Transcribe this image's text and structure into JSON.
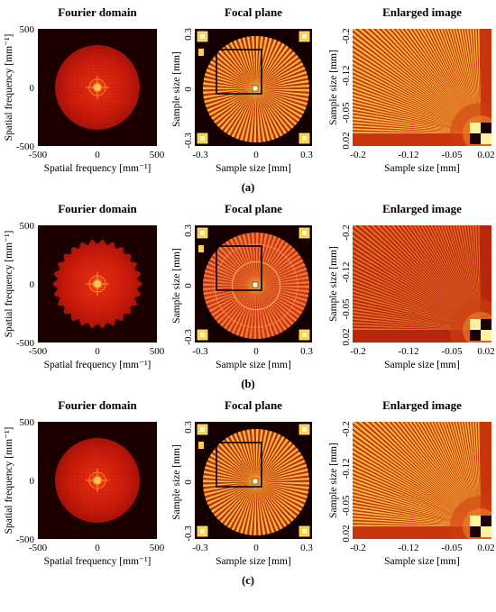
{
  "figure": {
    "rows": [
      {
        "caption": "(a)",
        "variant": "a",
        "panels": {
          "fourier": {
            "title": "Fourier domain",
            "xlabel": "Spatial frequency [mm⁻¹]",
            "ylabel": "Spatial frequency [mm⁻¹]"
          },
          "focal": {
            "title": "Focal plane",
            "xlabel": "Sample size [mm]",
            "ylabel": "Sample size [mm]"
          },
          "enlarged": {
            "title": "Enlarged image",
            "xlabel": "Sample size [mm]",
            "ylabel": "Sample size [mm]"
          }
        }
      },
      {
        "caption": "(b)",
        "variant": "b",
        "panels": {
          "fourier": {
            "title": "Fourier domain",
            "xlabel": "Spatial frequency [mm⁻¹]",
            "ylabel": "Spatial frequency [mm⁻¹]"
          },
          "focal": {
            "title": "Focal plane",
            "xlabel": "Sample size [mm]",
            "ylabel": "Sample size [mm]"
          },
          "enlarged": {
            "title": "Enlarged image",
            "xlabel": "Sample size [mm]",
            "ylabel": "Sample size [mm]"
          }
        }
      },
      {
        "caption": "(c)",
        "variant": "c",
        "panels": {
          "fourier": {
            "title": "Fourier domain",
            "xlabel": "Spatial frequency [mm⁻¹]",
            "ylabel": "Spatial frequency [mm⁻¹]"
          },
          "focal": {
            "title": "Focal plane",
            "xlabel": "Sample size [mm]",
            "ylabel": "Sample size [mm]"
          },
          "enlarged": {
            "title": "Enlarged image",
            "xlabel": "Sample size [mm]",
            "ylabel": "Sample size [mm]"
          }
        }
      }
    ],
    "fourier_axes": {
      "x_ticks": [
        "-500",
        "0",
        "500"
      ],
      "y_ticks": [
        "500",
        "0",
        "-500"
      ]
    },
    "focal_axes": {
      "x_ticks": [
        "-0.3",
        "0",
        "0.3"
      ],
      "y_ticks": [
        "0.3",
        "0",
        "-0.3"
      ]
    },
    "enlarged_axes": {
      "x_ticks": [
        "-0.2",
        "-0.12",
        "-0.05",
        "0.02"
      ],
      "y_ticks": [
        "-0.2",
        "-0.12",
        "-0.05",
        "0.02"
      ]
    },
    "colors": {
      "dark": "#1a0000",
      "red": "#c41a08",
      "orange": "#e88a14",
      "yellow": "#ffe04a",
      "box": "#000000"
    }
  }
}
